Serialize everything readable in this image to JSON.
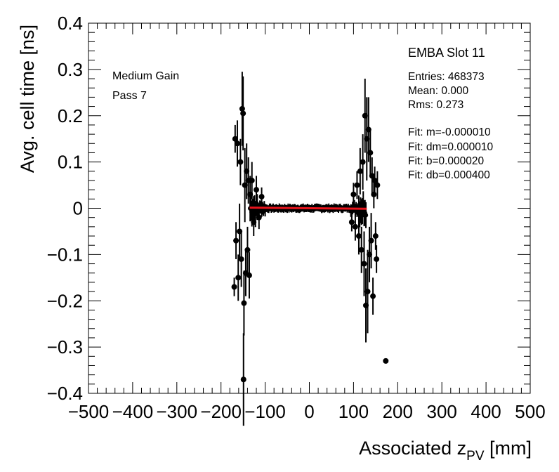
{
  "chart_data": {
    "type": "scatter",
    "title": "EMBA Slot 11",
    "xlabel": "Associated z",
    "xlabel_sub": "PV",
    "xlabel_unit": " [mm]",
    "ylabel": "Avg. cell time [ns]",
    "xlim": [
      -500,
      500
    ],
    "ylim": [
      -0.4,
      0.4
    ],
    "x_ticks": [
      -500,
      -400,
      -300,
      -200,
      -100,
      0,
      100,
      200,
      300,
      400,
      500
    ],
    "x_tick_labels": [
      "−500",
      "−400",
      "−300",
      "−200",
      "−100",
      "0",
      "100",
      "200",
      "300",
      "400",
      "500"
    ],
    "y_ticks": [
      -0.4,
      -0.3,
      -0.2,
      -0.1,
      0,
      0.1,
      0.2,
      0.3,
      0.4
    ],
    "y_tick_labels": [
      "−0.4",
      "−0.3",
      "−0.2",
      "−0.1",
      "0",
      "0.1",
      "0.2",
      "0.3",
      "0.4"
    ],
    "annotations": [
      "Medium Gain",
      "Pass 7"
    ],
    "stats": [
      "Entries: 468373",
      "Mean: 0.000",
      "Rms: 0.273",
      "Fit: m=-0.000010",
      "Fit: dm=0.000010",
      "Fit: b=0.000020",
      "Fit: db=0.000400"
    ],
    "fit_line": {
      "x": [
        -135,
        130
      ],
      "y": [
        0.0014,
        -0.0012
      ],
      "color": "#e8141c"
    },
    "noisy_points": [
      {
        "x": -170,
        "y": -0.17,
        "err": 0.02
      },
      {
        "x": -168,
        "y": 0.15,
        "err": 0.03
      },
      {
        "x": -166,
        "y": -0.07,
        "err": 0.04
      },
      {
        "x": -163,
        "y": 0.14,
        "err": 0.05
      },
      {
        "x": -161,
        "y": -0.15,
        "err": 0.05
      },
      {
        "x": -158,
        "y": -0.05,
        "err": 0.06
      },
      {
        "x": -156,
        "y": 0.1,
        "err": 0.05
      },
      {
        "x": -154,
        "y": -0.11,
        "err": 0.06
      },
      {
        "x": -152,
        "y": 0.215,
        "err": 0.08
      },
      {
        "x": -150,
        "y": 0.205,
        "err": 0.08
      },
      {
        "x": -149,
        "y": -0.37,
        "err": 0.1
      },
      {
        "x": -148,
        "y": -0.205,
        "err": 0.07
      },
      {
        "x": -146,
        "y": 0.05,
        "err": 0.08
      },
      {
        "x": -144,
        "y": -0.14,
        "err": 0.05
      },
      {
        "x": -142,
        "y": 0.08,
        "err": 0.06
      },
      {
        "x": -140,
        "y": -0.09,
        "err": 0.05
      },
      {
        "x": -138,
        "y": 0.06,
        "err": 0.05
      },
      {
        "x": -136,
        "y": -0.145,
        "err": 0.05
      },
      {
        "x": -134,
        "y": 0.03,
        "err": 0.04
      },
      {
        "x": -130,
        "y": 0.06,
        "err": 0.04
      },
      {
        "x": -126,
        "y": -0.03,
        "err": 0.03
      },
      {
        "x": -120,
        "y": 0.04,
        "err": 0.03
      },
      {
        "x": -114,
        "y": -0.02,
        "err": 0.025
      },
      {
        "x": -108,
        "y": 0.025,
        "err": 0.02
      },
      {
        "x": 96,
        "y": -0.03,
        "err": 0.02
      },
      {
        "x": 100,
        "y": 0.03,
        "err": 0.025
      },
      {
        "x": 104,
        "y": -0.04,
        "err": 0.03
      },
      {
        "x": 108,
        "y": 0.05,
        "err": 0.03
      },
      {
        "x": 112,
        "y": -0.06,
        "err": 0.04
      },
      {
        "x": 115,
        "y": 0.08,
        "err": 0.05
      },
      {
        "x": 118,
        "y": -0.09,
        "err": 0.05
      },
      {
        "x": 121,
        "y": 0.1,
        "err": 0.06
      },
      {
        "x": 124,
        "y": -0.12,
        "err": 0.07
      },
      {
        "x": 126,
        "y": 0.2,
        "err": 0.08
      },
      {
        "x": 128,
        "y": -0.21,
        "err": 0.08
      },
      {
        "x": 130,
        "y": 0.15,
        "err": 0.09
      },
      {
        "x": 132,
        "y": -0.18,
        "err": 0.09
      },
      {
        "x": 134,
        "y": 0.17,
        "err": 0.07
      },
      {
        "x": 136,
        "y": -0.1,
        "err": 0.06
      },
      {
        "x": 138,
        "y": 0.12,
        "err": 0.05
      },
      {
        "x": 140,
        "y": -0.07,
        "err": 0.06
      },
      {
        "x": 142,
        "y": 0.07,
        "err": 0.04
      },
      {
        "x": 144,
        "y": -0.19,
        "err": 0.04
      },
      {
        "x": 146,
        "y": 0.03,
        "err": 0.03
      },
      {
        "x": 148,
        "y": 0.06,
        "err": 0.03
      },
      {
        "x": 150,
        "y": -0.06,
        "err": 0.03
      },
      {
        "x": 152,
        "y": -0.11,
        "err": 0.03
      },
      {
        "x": 154,
        "y": 0.05,
        "err": 0.03
      },
      {
        "x": 173,
        "y": -0.33,
        "err": 0.0
      }
    ]
  }
}
